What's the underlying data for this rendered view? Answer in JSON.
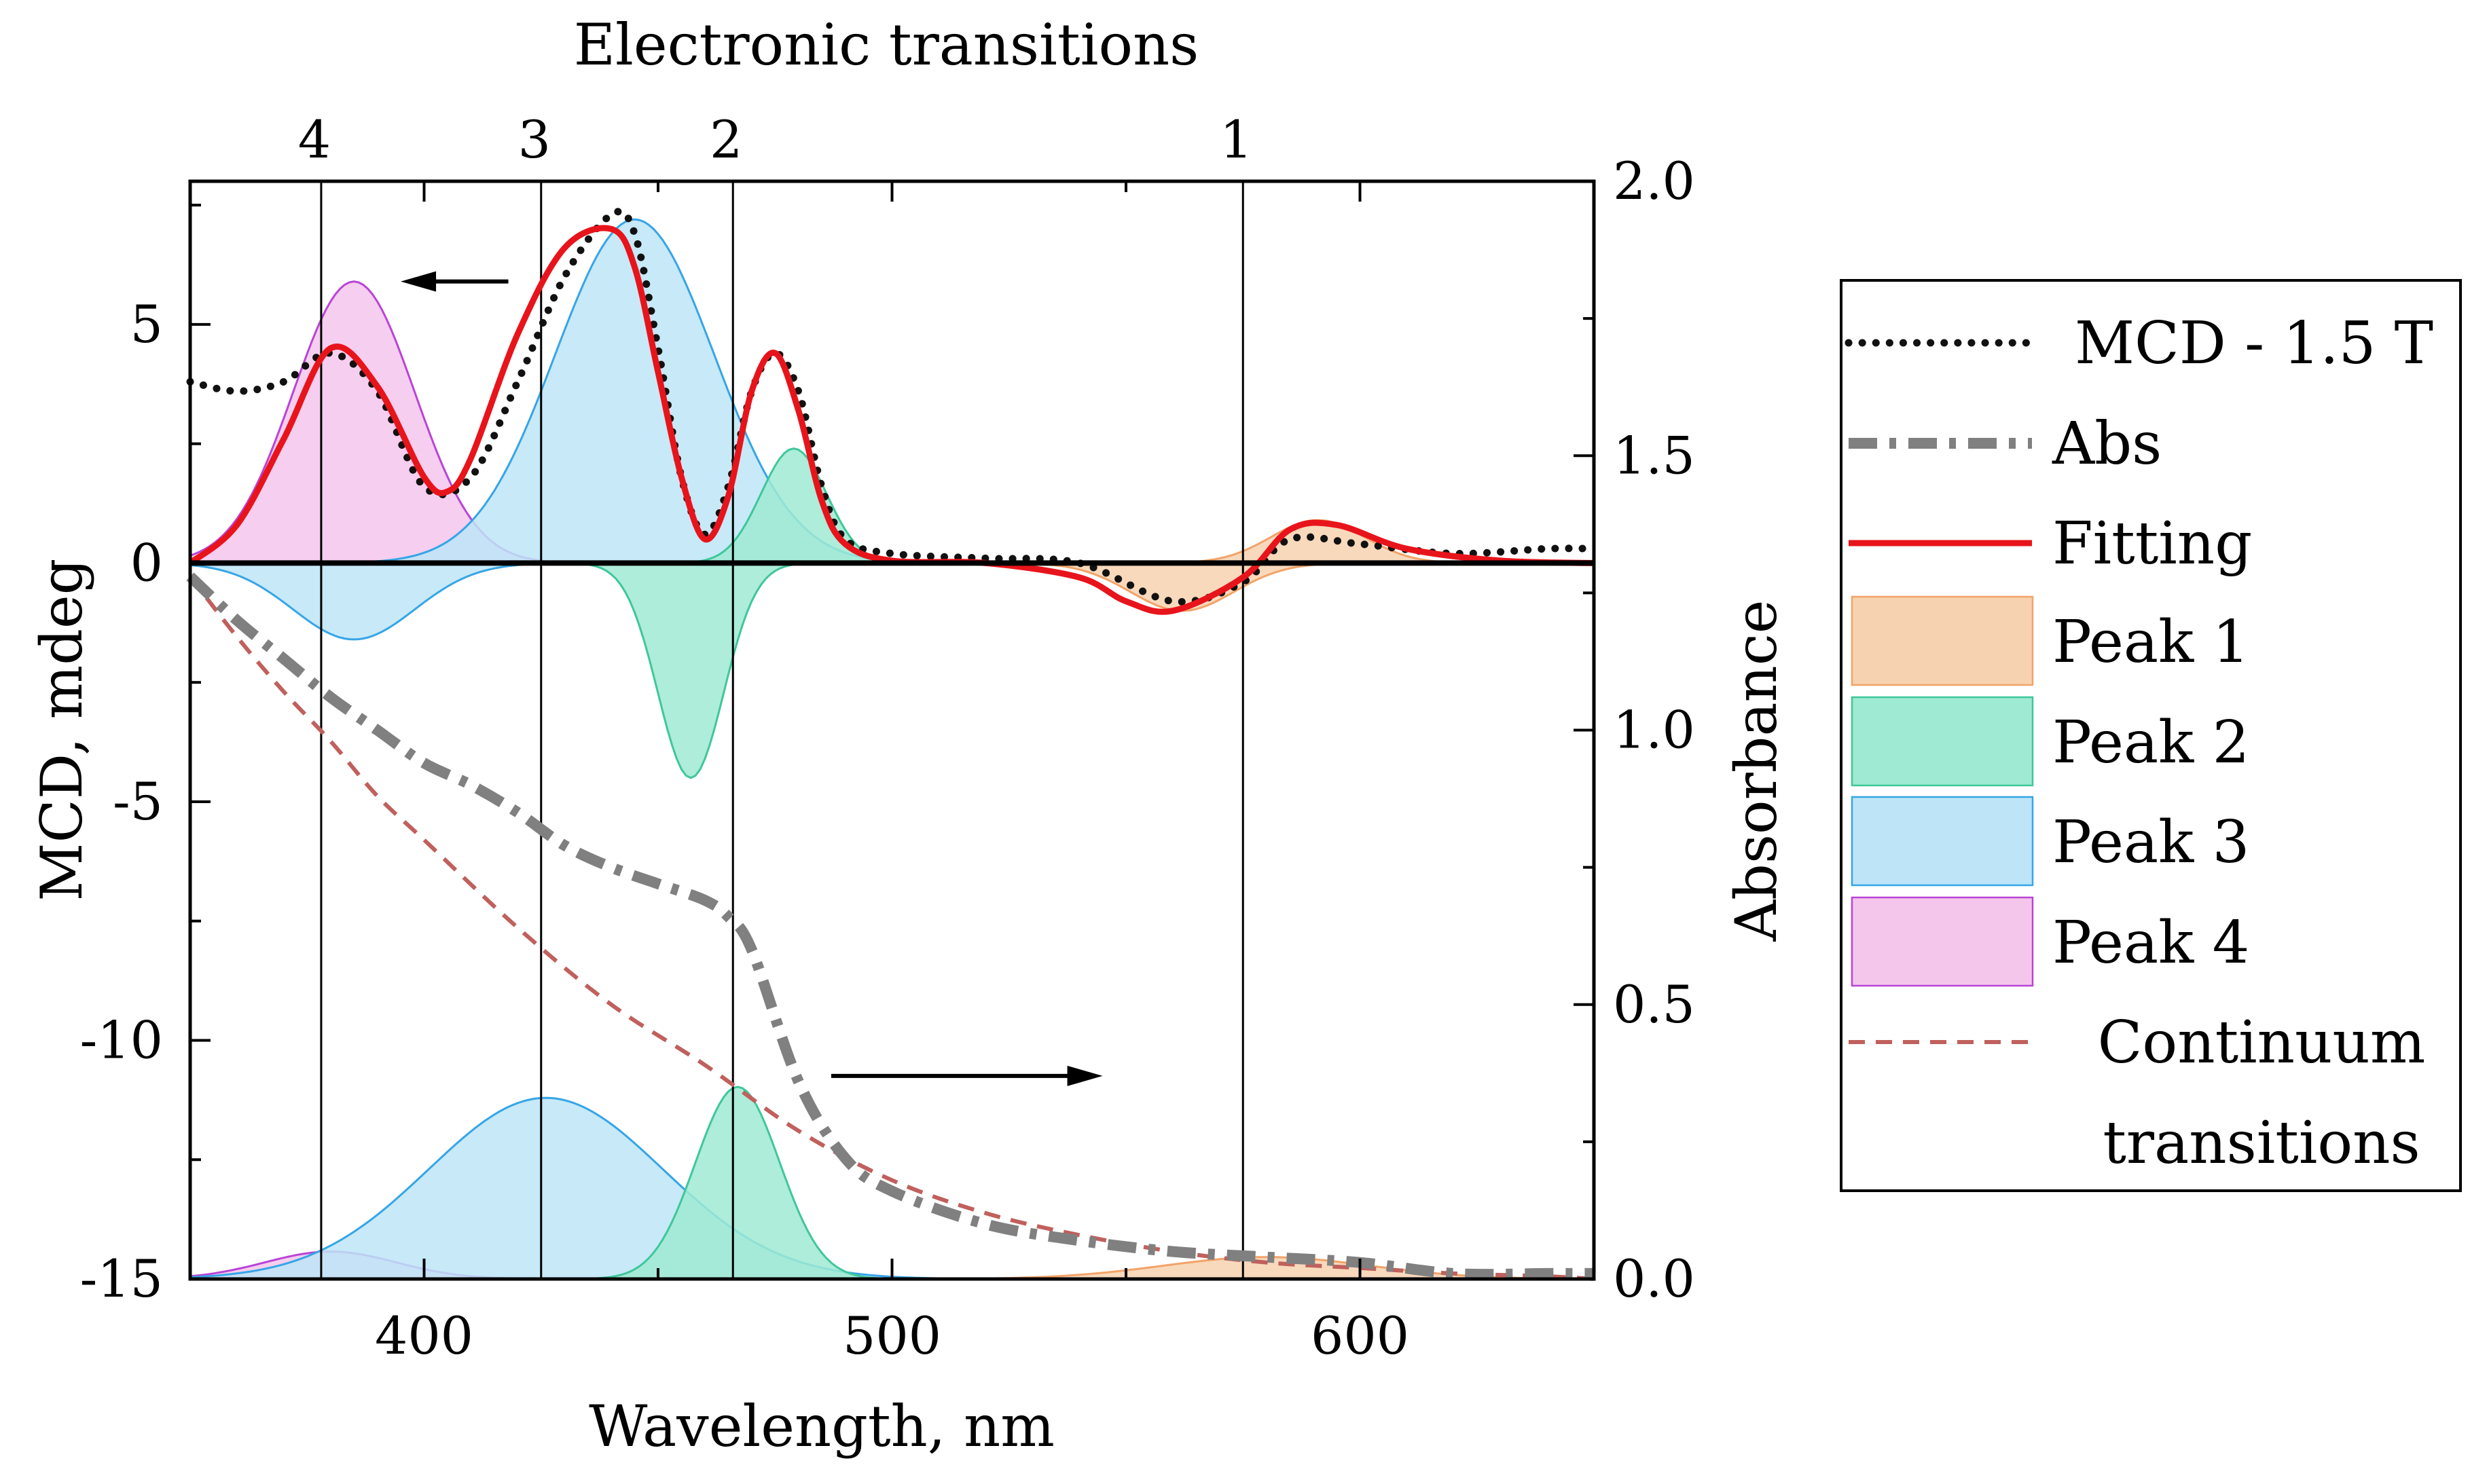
{
  "colors": {
    "peak1": "#f7d2b0",
    "peak1_stroke": "#f2a368",
    "peak2": "#9fead2",
    "peak2_stroke": "#3fc79a",
    "peak3": "#bde5f7",
    "peak3_stroke": "#36a5e6",
    "peak4": "#f4c6ec",
    "peak4_stroke": "#b944d6",
    "fitting": "#e8141b",
    "mcd": "#111111",
    "abs": "#808080",
    "continuum": "#c0605d"
  },
  "chart_data": {
    "type": "line",
    "title": "Electronic transitions",
    "xlabel": "Wavelength, nm",
    "ylabel": "MCD, mdeg",
    "y2label": "Absorbance",
    "xlim": [
      350,
      650
    ],
    "ylim": [
      -15,
      8
    ],
    "y2lim": [
      0.0,
      2.0
    ],
    "x_ticks": [
      "400",
      "500",
      "600"
    ],
    "x_tick_values": [
      400,
      500,
      600
    ],
    "y_ticks": [
      "5",
      "0",
      "-5",
      "-10",
      "-15"
    ],
    "y_tick_values": [
      5,
      0,
      -5,
      -10,
      -15
    ],
    "y2_ticks": [
      "2.0",
      "1.5",
      "1.0",
      "0.5",
      "0.0"
    ],
    "y2_tick_values": [
      2.0,
      1.5,
      1.0,
      0.5,
      0.0
    ],
    "transitions": [
      {
        "label": "4",
        "wavelength": 378
      },
      {
        "label": "3",
        "wavelength": 425
      },
      {
        "label": "2",
        "wavelength": 466
      },
      {
        "label": "1",
        "wavelength": 575
      }
    ],
    "arrows": [
      {
        "axis": "left",
        "from": [
          418,
          5.9
        ],
        "to": [
          395,
          5.9
        ]
      },
      {
        "axis": "right",
        "from": [
          487,
          0.37
        ],
        "to": [
          545,
          0.37
        ]
      }
    ],
    "mcd_peaks": [
      {
        "name": "Peak 4",
        "components": [
          {
            "center": 385,
            "amp": 5.9,
            "width": 13
          }
        ]
      },
      {
        "name": "Peak 3",
        "components": [
          {
            "center": 445,
            "amp": 7.2,
            "width": 17
          },
          {
            "center": 385,
            "amp": -1.6,
            "width": 13
          }
        ]
      },
      {
        "name": "Peak 2",
        "components": [
          {
            "center": 479,
            "amp": 2.4,
            "width": 7
          },
          {
            "center": 457,
            "amp": -4.5,
            "width": 7
          }
        ]
      },
      {
        "name": "Peak 1",
        "components": [
          {
            "center": 591,
            "amp": 0.9,
            "width": 10
          },
          {
            "center": 562,
            "amp": -1.0,
            "width": 11
          }
        ]
      }
    ],
    "abs_peaks": [
      {
        "name": "Peak 4",
        "center": 380,
        "amp": 0.05,
        "width": 14
      },
      {
        "name": "Peak 3",
        "center": 426,
        "amp": 0.33,
        "width": 25
      },
      {
        "name": "Peak 2",
        "center": 467,
        "amp": 0.35,
        "width": 9
      },
      {
        "name": "Peak 1",
        "center": 580,
        "amp": 0.04,
        "width": 22
      }
    ],
    "series": [
      {
        "name": "MCD - 1.5 T",
        "axis": "left",
        "x": [
          350,
          360,
          370,
          380,
          390,
          400,
          410,
          420,
          430,
          440,
          445,
          450,
          455,
          460,
          465,
          470,
          475,
          480,
          485,
          490,
          500,
          520,
          540,
          560,
          575,
          585,
          600,
          620,
          640,
          650
        ],
        "y": [
          3.8,
          3.6,
          3.8,
          4.4,
          3.6,
          1.6,
          1.8,
          3.8,
          6.0,
          7.3,
          6.9,
          4.5,
          1.8,
          0.6,
          1.6,
          3.6,
          4.4,
          3.6,
          1.6,
          0.5,
          0.2,
          0.1,
          0.0,
          -0.8,
          -0.4,
          0.5,
          0.4,
          0.2,
          0.3,
          0.3
        ]
      },
      {
        "name": "Fitting",
        "axis": "left",
        "x": [
          350,
          360,
          370,
          380,
          390,
          400,
          405,
          410,
          420,
          430,
          440,
          445,
          450,
          455,
          460,
          465,
          470,
          475,
          480,
          485,
          490,
          500,
          520,
          540,
          550,
          560,
          575,
          585,
          595,
          610,
          630,
          650
        ],
        "y": [
          0.0,
          0.8,
          2.6,
          4.5,
          3.7,
          1.8,
          1.5,
          2.2,
          4.8,
          6.6,
          7.0,
          6.2,
          4.0,
          1.8,
          0.5,
          1.4,
          3.6,
          4.4,
          3.2,
          1.3,
          0.4,
          0.05,
          0.0,
          -0.3,
          -0.8,
          -1.0,
          -0.3,
          0.7,
          0.8,
          0.3,
          0.05,
          0.0
        ]
      },
      {
        "name": "Abs",
        "axis": "right",
        "x": [
          350,
          360,
          370,
          380,
          390,
          400,
          410,
          420,
          430,
          440,
          450,
          460,
          465,
          470,
          480,
          490,
          500,
          520,
          540,
          560,
          580,
          600,
          620,
          640,
          650
        ],
        "y": [
          1.28,
          1.2,
          1.13,
          1.06,
          1.0,
          0.94,
          0.9,
          0.85,
          0.79,
          0.75,
          0.72,
          0.69,
          0.66,
          0.6,
          0.36,
          0.22,
          0.16,
          0.1,
          0.07,
          0.05,
          0.04,
          0.03,
          0.01,
          0.01,
          0.01
        ]
      },
      {
        "name": "Continuum transitions",
        "axis": "right",
        "x": [
          350,
          360,
          370,
          380,
          390,
          400,
          420,
          440,
          460,
          480,
          500,
          520,
          540,
          560,
          580,
          600,
          620,
          640,
          650
        ],
        "y": [
          1.28,
          1.17,
          1.07,
          0.98,
          0.88,
          0.8,
          0.64,
          0.5,
          0.39,
          0.27,
          0.18,
          0.12,
          0.08,
          0.05,
          0.03,
          0.02,
          0.01,
          0.005,
          0.0
        ]
      }
    ],
    "legend": {
      "placement": "outside-right",
      "entries": [
        {
          "label": "MCD - 1.5 T",
          "kind": "dotted"
        },
        {
          "label": "Abs",
          "kind": "dashdot"
        },
        {
          "label": "Fitting",
          "kind": "solid"
        },
        {
          "label": "Peak 1",
          "kind": "box1"
        },
        {
          "label": "Peak 2",
          "kind": "box2"
        },
        {
          "label": "Peak 3",
          "kind": "box3"
        },
        {
          "label": "Peak 4",
          "kind": "box4"
        },
        {
          "label": "Continuum",
          "label2": "transitions",
          "kind": "dashed"
        }
      ]
    }
  }
}
